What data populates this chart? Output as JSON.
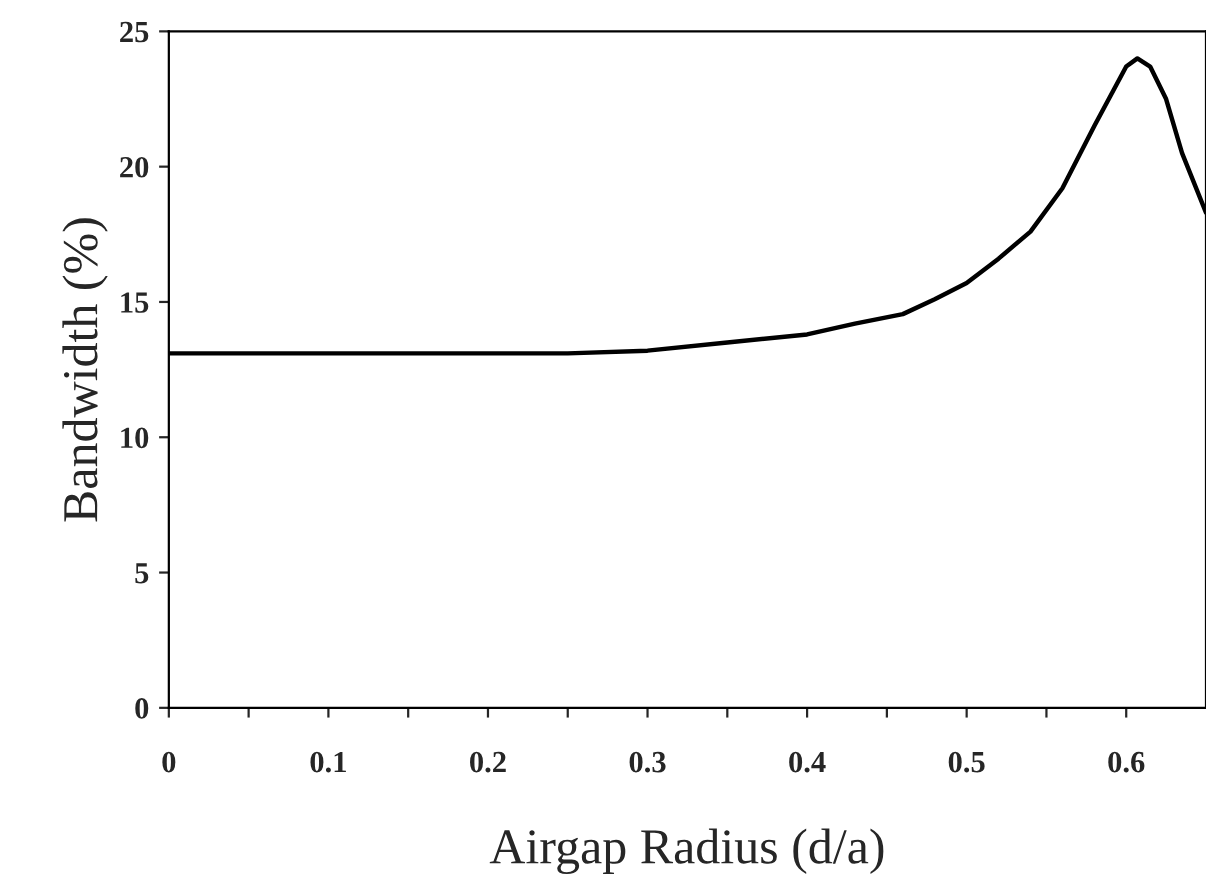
{
  "chart_data": {
    "type": "line",
    "xlabel": "Airgap Radius (d/a)",
    "ylabel": "Bandwidth (%)",
    "x": [
      0,
      0.1,
      0.2,
      0.25,
      0.3,
      0.35,
      0.4,
      0.43,
      0.46,
      0.48,
      0.5,
      0.52,
      0.54,
      0.56,
      0.58,
      0.6,
      0.607,
      0.615,
      0.625,
      0.635,
      0.65
    ],
    "series": [
      {
        "color": "#000000",
        "values": [
          13.1,
          13.1,
          13.1,
          13.1,
          13.2,
          13.5,
          13.8,
          14.2,
          14.55,
          15.1,
          15.7,
          16.6,
          17.6,
          19.2,
          21.5,
          23.7,
          24.0,
          23.7,
          22.5,
          20.5,
          18.3
        ]
      }
    ],
    "xlim": [
      0,
      0.65
    ],
    "ylim": [
      0,
      25
    ],
    "xticks": [
      0,
      {
        "value": 0.05,
        "label": null
      },
      0.1,
      {
        "value": 0.15,
        "label": null
      },
      0.2,
      {
        "value": 0.25,
        "label": null
      },
      0.3,
      {
        "value": 0.35,
        "label": null
      },
      0.4,
      {
        "value": 0.45,
        "label": null
      },
      0.5,
      {
        "value": 0.55,
        "label": null
      },
      0.6
    ],
    "yticks": [
      0,
      5,
      10,
      15,
      20,
      25
    ],
    "grid": false,
    "marker": "none",
    "line_style": "solid"
  }
}
